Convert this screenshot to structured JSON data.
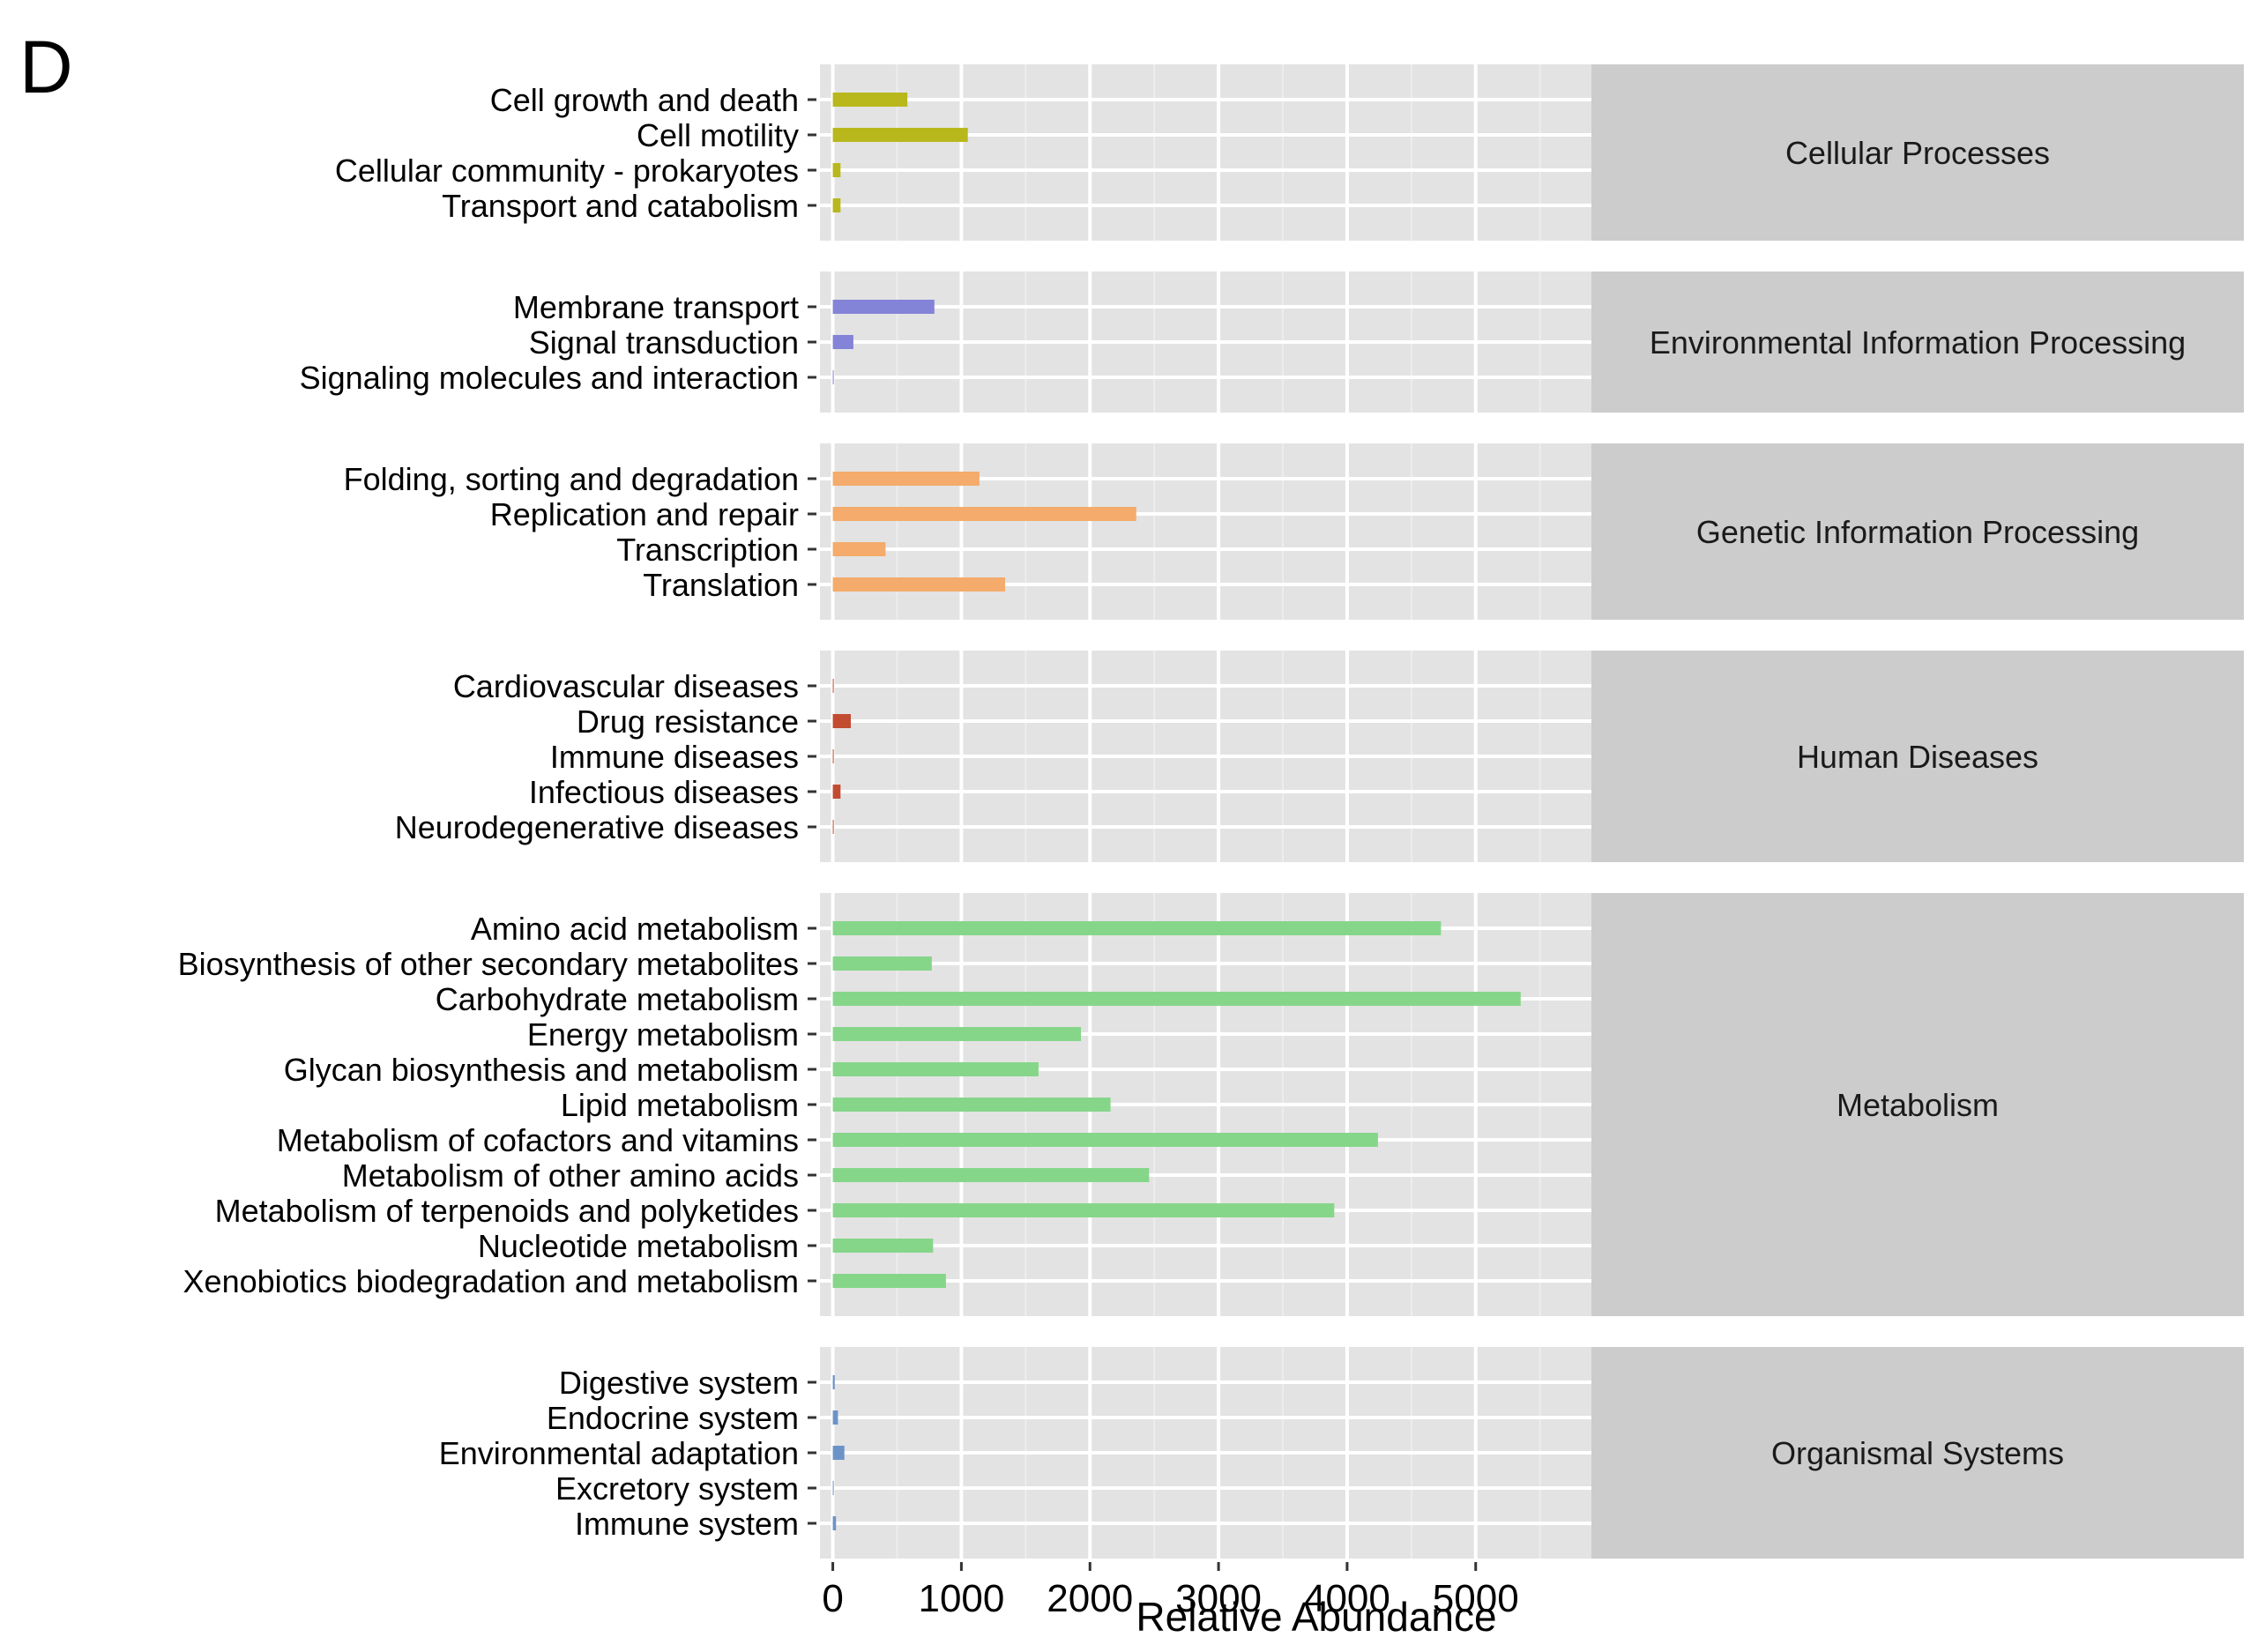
{
  "panel_letter": "D",
  "chart_data": {
    "type": "bar",
    "orientation": "horizontal",
    "xlabel": "Relative Abundance",
    "ylabel": "",
    "xlim": [
      -100,
      5900
    ],
    "xticks": [
      0,
      1000,
      2000,
      3000,
      4000,
      5000
    ],
    "xtick_labels": [
      "0",
      "1000",
      "2000",
      "3000",
      "4000",
      "5000"
    ],
    "grid": true,
    "legend": "none",
    "groups": [
      {
        "name": "Cellular Processes",
        "color": "#b8b81c",
        "categories": [
          "Cell growth and death",
          "Cell motility",
          "Cellular community - prokaryotes",
          "Transport and catabolism"
        ],
        "values": [
          580,
          1050,
          60,
          60
        ]
      },
      {
        "name": "Environmental Information Processing",
        "color": "#8383d8",
        "categories": [
          "Membrane transport",
          "Signal transduction",
          "Signaling molecules and interaction"
        ],
        "values": [
          790,
          160,
          5
        ]
      },
      {
        "name": "Genetic Information Processing",
        "color": "#f4ab6b",
        "categories": [
          "Folding, sorting and degradation",
          "Replication and repair",
          "Transcription",
          "Translation"
        ],
        "values": [
          1140,
          2360,
          410,
          1340
        ]
      },
      {
        "name": "Human Diseases",
        "color": "#c24c32",
        "categories": [
          "Cardiovascular diseases",
          "Drug resistance",
          "Immune diseases",
          "Infectious diseases",
          "Neurodegenerative diseases"
        ],
        "values": [
          5,
          140,
          5,
          60,
          5
        ]
      },
      {
        "name": "Metabolism",
        "color": "#86d68a",
        "categories": [
          "Amino acid metabolism",
          "Biosynthesis of other secondary metabolites",
          "Carbohydrate metabolism",
          "Energy metabolism",
          "Glycan biosynthesis and metabolism",
          "Lipid metabolism",
          "Metabolism of cofactors and vitamins",
          "Metabolism of other amino acids",
          "Metabolism of terpenoids and polyketides",
          "Nucleotide metabolism",
          "Xenobiotics biodegradation and metabolism"
        ],
        "values": [
          4730,
          770,
          5350,
          1930,
          1600,
          2160,
          4240,
          2460,
          3900,
          780,
          880
        ]
      },
      {
        "name": "Organismal Systems",
        "color": "#6c93c8",
        "categories": [
          "Digestive system",
          "Endocrine system",
          "Environmental adaptation",
          "Excretory system",
          "Immune system"
        ],
        "values": [
          15,
          40,
          90,
          5,
          25
        ]
      }
    ]
  }
}
